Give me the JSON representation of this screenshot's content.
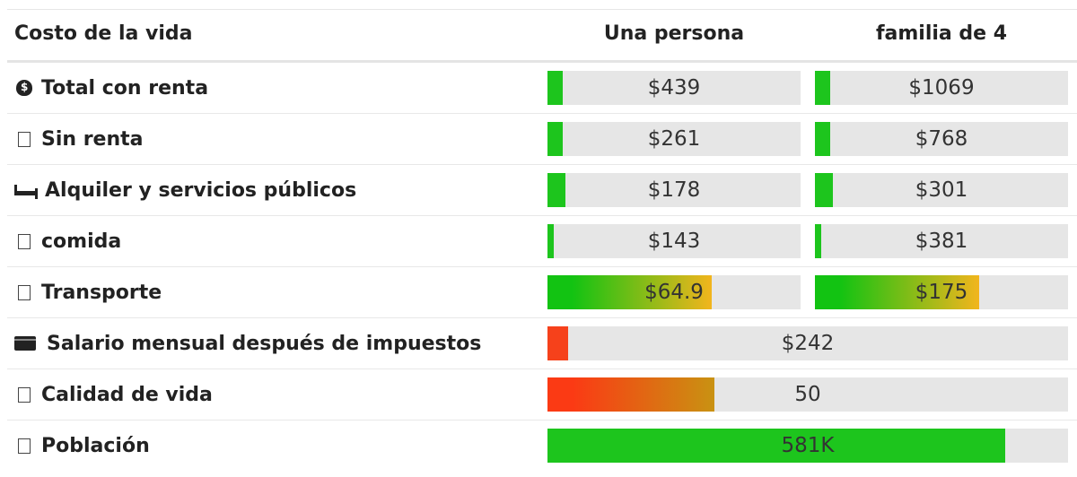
{
  "header": {
    "category": "Costo de la vida",
    "col1": "Una persona",
    "col2": "familia de 4"
  },
  "rows": [
    {
      "label": "Total con renta",
      "icon": "money-bag-icon",
      "one": {
        "value": "$439",
        "level": 0.06
      },
      "family": {
        "value": "$1069",
        "level": 0.06
      }
    },
    {
      "label": "Sin renta",
      "icon": "box-icon",
      "one": {
        "value": "$261",
        "level": 0.06
      },
      "family": {
        "value": "$768",
        "level": 0.06
      }
    },
    {
      "label": "Alquiler y servicios públicos",
      "icon": "bed-icon",
      "one": {
        "value": "$178",
        "level": 0.07
      },
      "family": {
        "value": "$301",
        "level": 0.07
      }
    },
    {
      "label": "comida",
      "icon": "box-icon",
      "one": {
        "value": "$143",
        "level": 0.025
      },
      "family": {
        "value": "$381",
        "level": 0.025
      }
    },
    {
      "label": "Transporte",
      "icon": "box-icon",
      "one": {
        "value": "$64.9",
        "level": 0.65
      },
      "family": {
        "value": "$175",
        "level": 0.65
      }
    }
  ],
  "wide_rows": [
    {
      "label": "Salario mensual después de impuestos",
      "icon": "wallet-icon",
      "value": "$242",
      "level": 0.04
    },
    {
      "label": "Calidad de vida",
      "icon": "box-icon",
      "value": "50",
      "level": 0.32
    },
    {
      "label": "Población",
      "icon": "box-icon",
      "value": "581K",
      "level": 0.88
    }
  ],
  "colors": {
    "green": "#1dc51d",
    "red": "#f6411b",
    "track": "#e6e6e6",
    "transport_gradient": [
      "#12c312",
      "#f2b51d"
    ],
    "quality_gradient": [
      "#fb3a14",
      "#c99212"
    ]
  }
}
